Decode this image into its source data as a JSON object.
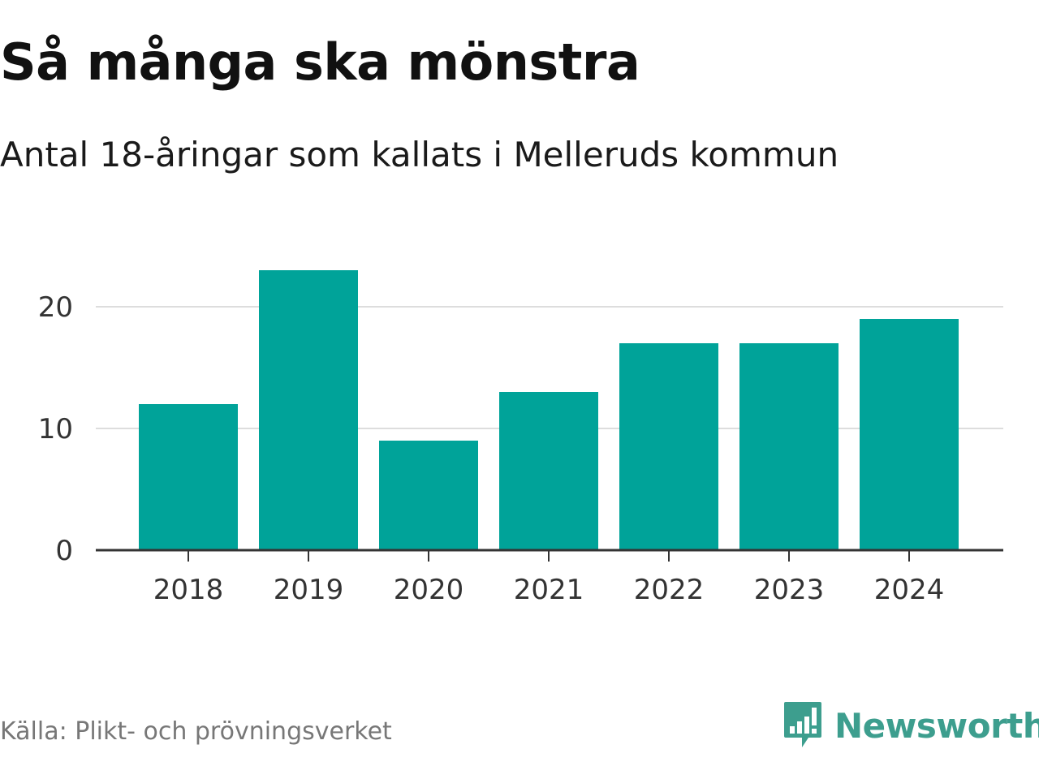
{
  "header": {
    "title": "Så många ska mönstra",
    "subtitle": "Antal 18-åringar som kallats i Melleruds kommun"
  },
  "footer": {
    "source": "Källa: Plikt- och prövningsverket",
    "brand": "Newsworthy",
    "brand_icon": "newsworthy-logo-icon"
  },
  "colors": {
    "bar": "#00a399",
    "grid": "#dddddd",
    "axis": "#333333",
    "brand": "#3d9e8e"
  },
  "chart_data": {
    "type": "bar",
    "title": "Så många ska mönstra",
    "subtitle": "Antal 18-åringar som kallats i Melleruds kommun",
    "xlabel": "",
    "ylabel": "",
    "categories": [
      "2018",
      "2019",
      "2020",
      "2021",
      "2022",
      "2023",
      "2024"
    ],
    "values": [
      12,
      23,
      9,
      13,
      17,
      17,
      19
    ],
    "ylim": [
      0,
      25
    ],
    "yticks": [
      0,
      10,
      20
    ],
    "grid": true,
    "legend": "none"
  }
}
